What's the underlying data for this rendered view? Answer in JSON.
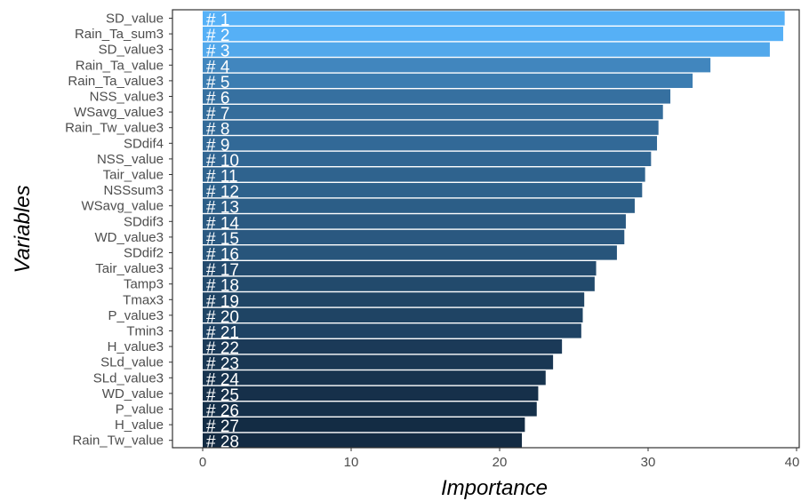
{
  "chart_data": {
    "type": "bar",
    "orientation": "horizontal",
    "xlabel": "Importance",
    "ylabel": "Variables",
    "xlim": [
      0,
      40
    ],
    "xticks": [
      0,
      10,
      20,
      30,
      40
    ],
    "grid": false,
    "legend": "none",
    "color_low": "#132b43",
    "color_high": "#56b1f7",
    "categories": [
      "SD_value",
      "Rain_Ta_sum3",
      "SD_value3",
      "Rain_Ta_value",
      "Rain_Ta_value3",
      "NSS_value3",
      "WSavg_value3",
      "Rain_Tw_value3",
      "SDdif4",
      "NSS_value",
      "Tair_value",
      "NSSsum3",
      "WSavg_value",
      "SDdif3",
      "WD_value3",
      "SDdif2",
      "Tair_value3",
      "Tamp3",
      "Tmax3",
      "P_value3",
      "Tmin3",
      "H_value3",
      "SLd_value",
      "SLd_value3",
      "WD_value",
      "P_value",
      "H_value",
      "Rain_Tw_value"
    ],
    "values": [
      39.2,
      39.1,
      38.2,
      34.2,
      33.0,
      31.5,
      31.0,
      30.7,
      30.6,
      30.2,
      29.8,
      29.6,
      29.1,
      28.5,
      28.4,
      27.9,
      26.5,
      26.4,
      25.7,
      25.6,
      25.5,
      24.2,
      23.6,
      23.1,
      22.6,
      22.5,
      21.7,
      21.5
    ],
    "bar_labels": [
      "# 1",
      "# 2",
      "# 3",
      "# 4",
      "# 5",
      "# 6",
      "# 7",
      "# 8",
      "# 9",
      "# 10",
      "# 11",
      "# 12",
      "# 13",
      "# 14",
      "# 15",
      "# 16",
      "# 17",
      "# 18",
      "# 19",
      "# 20",
      "# 21",
      "# 22",
      "# 23",
      "# 24",
      "# 25",
      "# 26",
      "# 27",
      "# 28"
    ]
  }
}
